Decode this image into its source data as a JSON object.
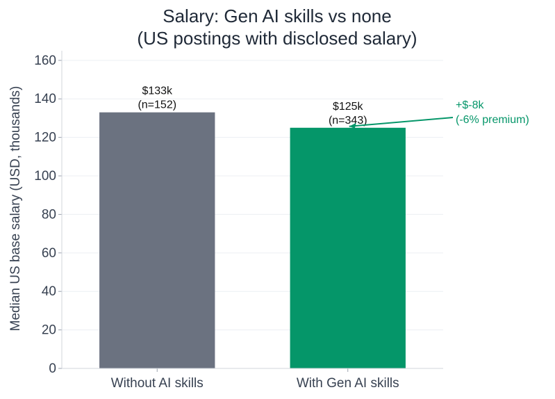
{
  "chart_data": {
    "type": "bar",
    "title_lines": [
      "Salary: Gen AI skills vs none",
      "(US postings with disclosed salary)"
    ],
    "xlabel": "",
    "ylabel": "Median US base salary (USD, thousands)",
    "ylim": [
      0,
      165
    ],
    "yticks": [
      0,
      20,
      40,
      60,
      80,
      100,
      120,
      140,
      160
    ],
    "categories": [
      "Without AI skills",
      "With Gen AI skills"
    ],
    "values": [
      133,
      125
    ],
    "colors": [
      "#6b7280",
      "#059669"
    ],
    "bar_labels": [
      [
        "$133k",
        "(n=152)"
      ],
      [
        "$125k",
        "(n=343)"
      ]
    ],
    "annotation": {
      "lines": [
        "+$-8k",
        "(-6% premium)"
      ],
      "color": "#059669",
      "target_category": "With Gen AI skills",
      "target_value": 125
    },
    "grid": "horizontal",
    "legend": "none"
  }
}
